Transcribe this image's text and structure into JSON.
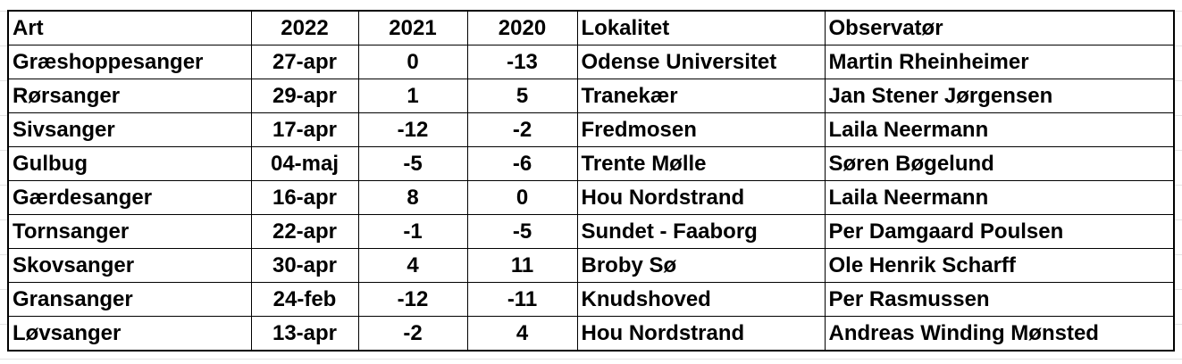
{
  "table": {
    "header": [
      "Art",
      "2022",
      "2021",
      "2020",
      "Lokalitet",
      "Observatør"
    ],
    "rows": [
      [
        "Græshoppesanger",
        "27-apr",
        0,
        -13,
        "Odense Universitet",
        "Martin Rheinheimer"
      ],
      [
        "Rørsanger",
        "29-apr",
        1,
        5,
        "Tranekær",
        "Jan Stener Jørgensen"
      ],
      [
        "Sivsanger",
        "17-apr",
        -12,
        -2,
        "Fredmosen",
        "Laila Neermann"
      ],
      [
        "Gulbug",
        "04-maj",
        -5,
        -6,
        "Trente Mølle",
        "Søren Bøgelund"
      ],
      [
        "Gærdesanger",
        "16-apr",
        8,
        0,
        "Hou Nordstrand",
        "Laila Neermann"
      ],
      [
        "Tornsanger",
        "22-apr",
        -1,
        -5,
        "Sundet - Faaborg",
        "Per Damgaard Poulsen"
      ],
      [
        "Skovsanger",
        "30-apr",
        4,
        11,
        "Broby Sø",
        "Ole Henrik Scharff"
      ],
      [
        "Gransanger",
        "24-feb",
        -12,
        -11,
        "Knudshoved",
        "Per Rasmussen"
      ],
      [
        "Løvsanger",
        "13-apr",
        -2,
        4,
        "Hou Nordstrand",
        "Andreas Winding Mønsted"
      ]
    ]
  }
}
